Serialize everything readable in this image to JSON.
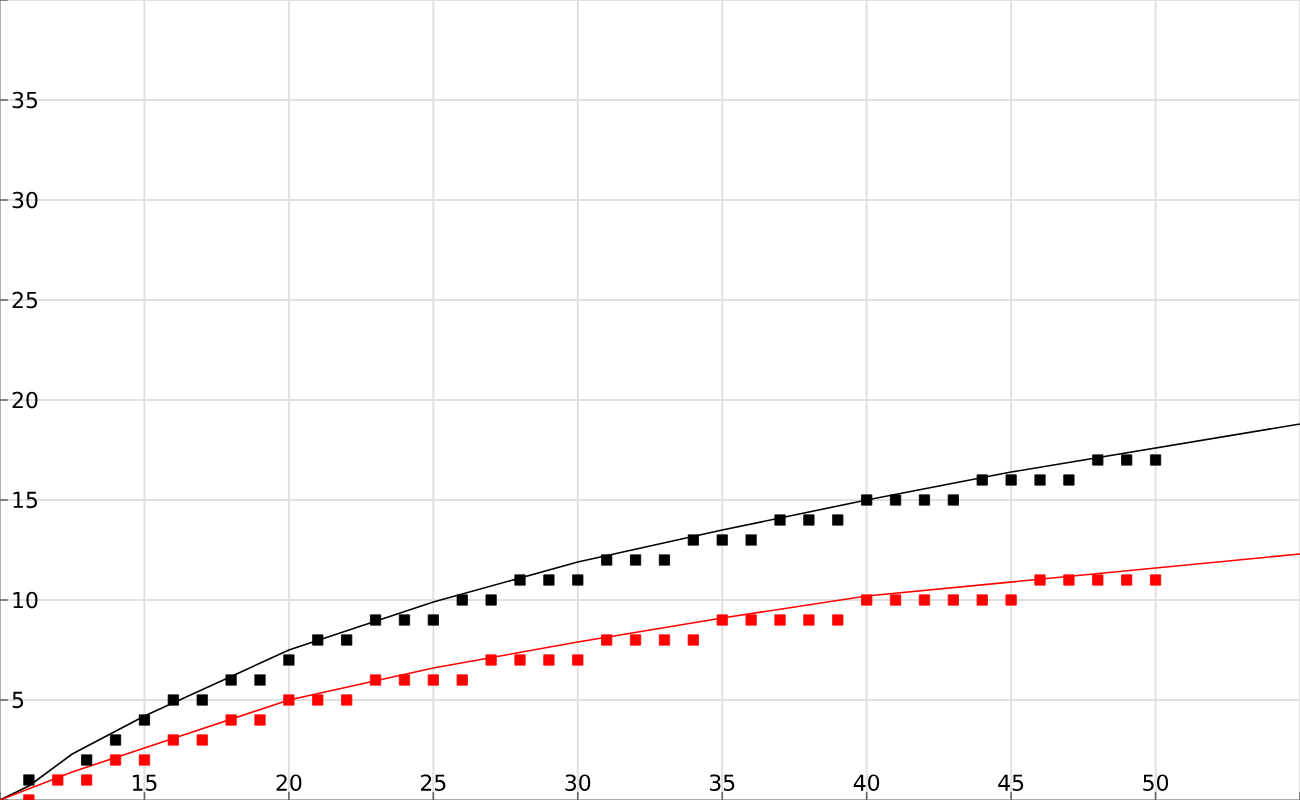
{
  "chart_data": {
    "type": "scatter",
    "marker": "square",
    "grid": true,
    "xlim": [
      10,
      55
    ],
    "ylim": [
      0,
      40
    ],
    "xticks": [
      {
        "value": 10,
        "label": null
      },
      15,
      20,
      25,
      30,
      35,
      40,
      45,
      50,
      {
        "value": 55,
        "label": null
      }
    ],
    "yticks": [
      {
        "value": 0,
        "label": null
      },
      5,
      10,
      15,
      20,
      25,
      30,
      35,
      {
        "value": 40,
        "label": null
      }
    ],
    "series": [
      {
        "color": "#000000",
        "x": [
          11,
          13,
          14,
          15,
          16,
          17,
          18,
          19,
          20,
          21,
          22,
          23,
          24,
          25,
          26,
          27,
          28,
          29,
          30,
          31,
          32,
          33,
          34,
          35,
          36,
          37,
          38,
          39,
          40,
          41,
          42,
          43,
          44,
          45,
          46,
          47,
          48,
          49,
          50
        ],
        "values": [
          1,
          2,
          3,
          4,
          5,
          5,
          6,
          6,
          7,
          8,
          8,
          9,
          9,
          9,
          10,
          10,
          11,
          11,
          11,
          12,
          12,
          12,
          13,
          13,
          13,
          14,
          14,
          14,
          15,
          15,
          15,
          15,
          16,
          16,
          16,
          16,
          17,
          17,
          17
        ]
      },
      {
        "color": "#ff0000",
        "x": [
          11,
          12,
          13,
          14,
          15,
          16,
          17,
          18,
          19,
          20,
          21,
          22,
          23,
          24,
          25,
          26,
          27,
          28,
          29,
          30,
          31,
          32,
          33,
          34,
          35,
          36,
          37,
          38,
          39,
          40,
          41,
          42,
          43,
          44,
          45,
          46,
          47,
          48,
          49,
          50
        ],
        "values": [
          0,
          1,
          1,
          2,
          2,
          3,
          3,
          4,
          4,
          5,
          5,
          5,
          6,
          6,
          6,
          6,
          7,
          7,
          7,
          7,
          8,
          8,
          8,
          8,
          9,
          9,
          9,
          9,
          9,
          10,
          10,
          10,
          10,
          10,
          10,
          11,
          11,
          11,
          11,
          11
        ]
      },
      {
        "type": "line",
        "marker": "none",
        "color": "#000000",
        "x": [
          10,
          11,
          12.5,
          15,
          20,
          25,
          30,
          35,
          40,
          45,
          50,
          55
        ],
        "values": [
          0,
          0.7,
          2.3,
          4.2,
          7.5,
          9.9,
          11.9,
          13.5,
          15.0,
          16.4,
          17.6,
          18.8
        ]
      },
      {
        "type": "line",
        "marker": "none",
        "color": "#ff0000",
        "x": [
          10,
          12.5,
          15,
          20,
          25,
          30,
          35,
          40,
          45,
          50,
          55
        ],
        "values": [
          0,
          1.4,
          2.6,
          5.0,
          6.6,
          7.9,
          9.1,
          10.2,
          10.9,
          11.6,
          12.3
        ]
      }
    ]
  }
}
